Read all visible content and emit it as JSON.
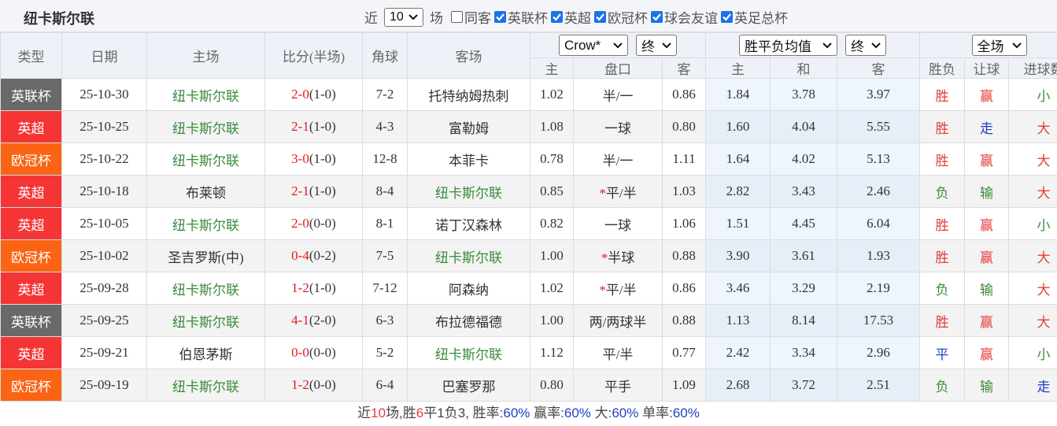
{
  "header": {
    "title": "纽卡斯尔联",
    "filter": {
      "prefix": "近",
      "count": "10",
      "suffix": "场",
      "options": [
        {
          "label": "同客",
          "checked": false
        },
        {
          "label": "英联杯",
          "checked": true
        },
        {
          "label": "英超",
          "checked": true
        },
        {
          "label": "欧冠杯",
          "checked": true
        },
        {
          "label": "球会友谊",
          "checked": true
        },
        {
          "label": "英足总杯",
          "checked": true
        }
      ]
    }
  },
  "table": {
    "columns": [
      "类型",
      "日期",
      "主场",
      "比分(半场)",
      "角球",
      "客场"
    ],
    "selects": [
      "Crow*",
      "终",
      "胜平负均值",
      "终",
      "全场"
    ],
    "subcolumns": [
      "主",
      "盘口",
      "客",
      "主",
      "和",
      "客",
      "胜负",
      "让球",
      "进球数"
    ],
    "type_colors": {
      "英联杯": "#696969",
      "英超": "#f53535",
      "欧冠杯": "#fa6414"
    },
    "result_colors": {
      "胜": "#e53b3b",
      "赢": "#e53b3b",
      "大": "#e53b3b",
      "负": "#3a8a3a",
      "输": "#3a8a3a",
      "小": "#3a8a3a",
      "平": "#2140c8",
      "走": "#2140c8"
    },
    "rows": [
      {
        "type": "英联杯",
        "date": "25-10-30",
        "home": "纽卡斯尔联",
        "score": "2-0",
        "half": "(1-0)",
        "corners": "7-2",
        "away": "托特纳姆热刺",
        "ah_home": "1.02",
        "star": "",
        "line": "半/一",
        "ah_away": "0.86",
        "win": "1.84",
        "draw": "3.78",
        "loss": "3.97",
        "result": "胜",
        "ah_result": "赢",
        "goals": "小"
      },
      {
        "type": "英超",
        "date": "25-10-25",
        "home": "纽卡斯尔联",
        "score": "2-1",
        "half": "(1-0)",
        "corners": "4-3",
        "away": "富勒姆",
        "ah_home": "1.08",
        "star": "",
        "line": "一球",
        "ah_away": "0.80",
        "win": "1.60",
        "draw": "4.04",
        "loss": "5.55",
        "result": "胜",
        "ah_result": "走",
        "goals": "大"
      },
      {
        "type": "欧冠杯",
        "date": "25-10-22",
        "home": "纽卡斯尔联",
        "score": "3-0",
        "half": "(1-0)",
        "corners": "12-8",
        "away": "本菲卡",
        "ah_home": "0.78",
        "star": "",
        "line": "半/一",
        "ah_away": "1.11",
        "win": "1.64",
        "draw": "4.02",
        "loss": "5.13",
        "result": "胜",
        "ah_result": "赢",
        "goals": "大"
      },
      {
        "type": "英超",
        "date": "25-10-18",
        "home": "布莱顿",
        "score": "2-1",
        "half": "(1-0)",
        "corners": "8-4",
        "away": "纽卡斯尔联",
        "ah_home": "0.85",
        "star": "*",
        "line": "平/半",
        "ah_away": "1.03",
        "win": "2.82",
        "draw": "3.43",
        "loss": "2.46",
        "result": "负",
        "ah_result": "输",
        "goals": "大"
      },
      {
        "type": "英超",
        "date": "25-10-05",
        "home": "纽卡斯尔联",
        "score": "2-0",
        "half": "(0-0)",
        "corners": "8-1",
        "away": "诺丁汉森林",
        "ah_home": "0.82",
        "star": "",
        "line": "一球",
        "ah_away": "1.06",
        "win": "1.51",
        "draw": "4.45",
        "loss": "6.04",
        "result": "胜",
        "ah_result": "赢",
        "goals": "小"
      },
      {
        "type": "欧冠杯",
        "date": "25-10-02",
        "home": "圣吉罗斯(中)",
        "score": "0-4",
        "half": "(0-2)",
        "corners": "7-5",
        "away": "纽卡斯尔联",
        "ah_home": "1.00",
        "star": "*",
        "line": "半球",
        "ah_away": "0.88",
        "win": "3.90",
        "draw": "3.61",
        "loss": "1.93",
        "result": "胜",
        "ah_result": "赢",
        "goals": "大"
      },
      {
        "type": "英超",
        "date": "25-09-28",
        "home": "纽卡斯尔联",
        "score": "1-2",
        "half": "(1-0)",
        "corners": "7-12",
        "away": "阿森纳",
        "ah_home": "1.02",
        "star": "*",
        "line": "平/半",
        "ah_away": "0.86",
        "win": "3.46",
        "draw": "3.29",
        "loss": "2.19",
        "result": "负",
        "ah_result": "输",
        "goals": "大"
      },
      {
        "type": "英联杯",
        "date": "25-09-25",
        "home": "纽卡斯尔联",
        "score": "4-1",
        "half": "(2-0)",
        "corners": "6-3",
        "away": "布拉德福德",
        "ah_home": "1.00",
        "star": "",
        "line": "两/两球半",
        "ah_away": "0.88",
        "win": "1.13",
        "draw": "8.14",
        "loss": "17.53",
        "result": "胜",
        "ah_result": "赢",
        "goals": "大"
      },
      {
        "type": "英超",
        "date": "25-09-21",
        "home": "伯恩茅斯",
        "score": "0-0",
        "half": "(0-0)",
        "corners": "5-2",
        "away": "纽卡斯尔联",
        "ah_home": "1.12",
        "star": "",
        "line": "平/半",
        "ah_away": "0.77",
        "win": "2.42",
        "draw": "3.34",
        "loss": "2.96",
        "result": "平",
        "ah_result": "赢",
        "goals": "小"
      },
      {
        "type": "欧冠杯",
        "date": "25-09-19",
        "home": "纽卡斯尔联",
        "score": "1-2",
        "half": "(0-0)",
        "corners": "6-4",
        "away": "巴塞罗那",
        "ah_home": "0.80",
        "star": "",
        "line": "平手",
        "ah_away": "1.09",
        "win": "2.68",
        "draw": "3.72",
        "loss": "2.51",
        "result": "负",
        "ah_result": "输",
        "goals": "走"
      }
    ]
  },
  "footer": [
    {
      "text": "近",
      "color": "#444"
    },
    {
      "text": "10",
      "color": "#e53b3b"
    },
    {
      "text": "场,胜",
      "color": "#444"
    },
    {
      "text": "6",
      "color": "#e53b3b"
    },
    {
      "text": "平",
      "color": "#444"
    },
    {
      "text": "1",
      "color": "#444"
    },
    {
      "text": "负",
      "color": "#444"
    },
    {
      "text": "3",
      "color": "#444"
    },
    {
      "text": ", 胜率:",
      "color": "#444"
    },
    {
      "text": "60%",
      "color": "#2140c8"
    },
    {
      "text": " 赢率:",
      "color": "#444"
    },
    {
      "text": "60%",
      "color": "#2140c8"
    },
    {
      "text": " 大:",
      "color": "#444"
    },
    {
      "text": "60%",
      "color": "#2140c8"
    },
    {
      "text": " 单率:",
      "color": "#444"
    },
    {
      "text": "60%",
      "color": "#2140c8"
    }
  ]
}
